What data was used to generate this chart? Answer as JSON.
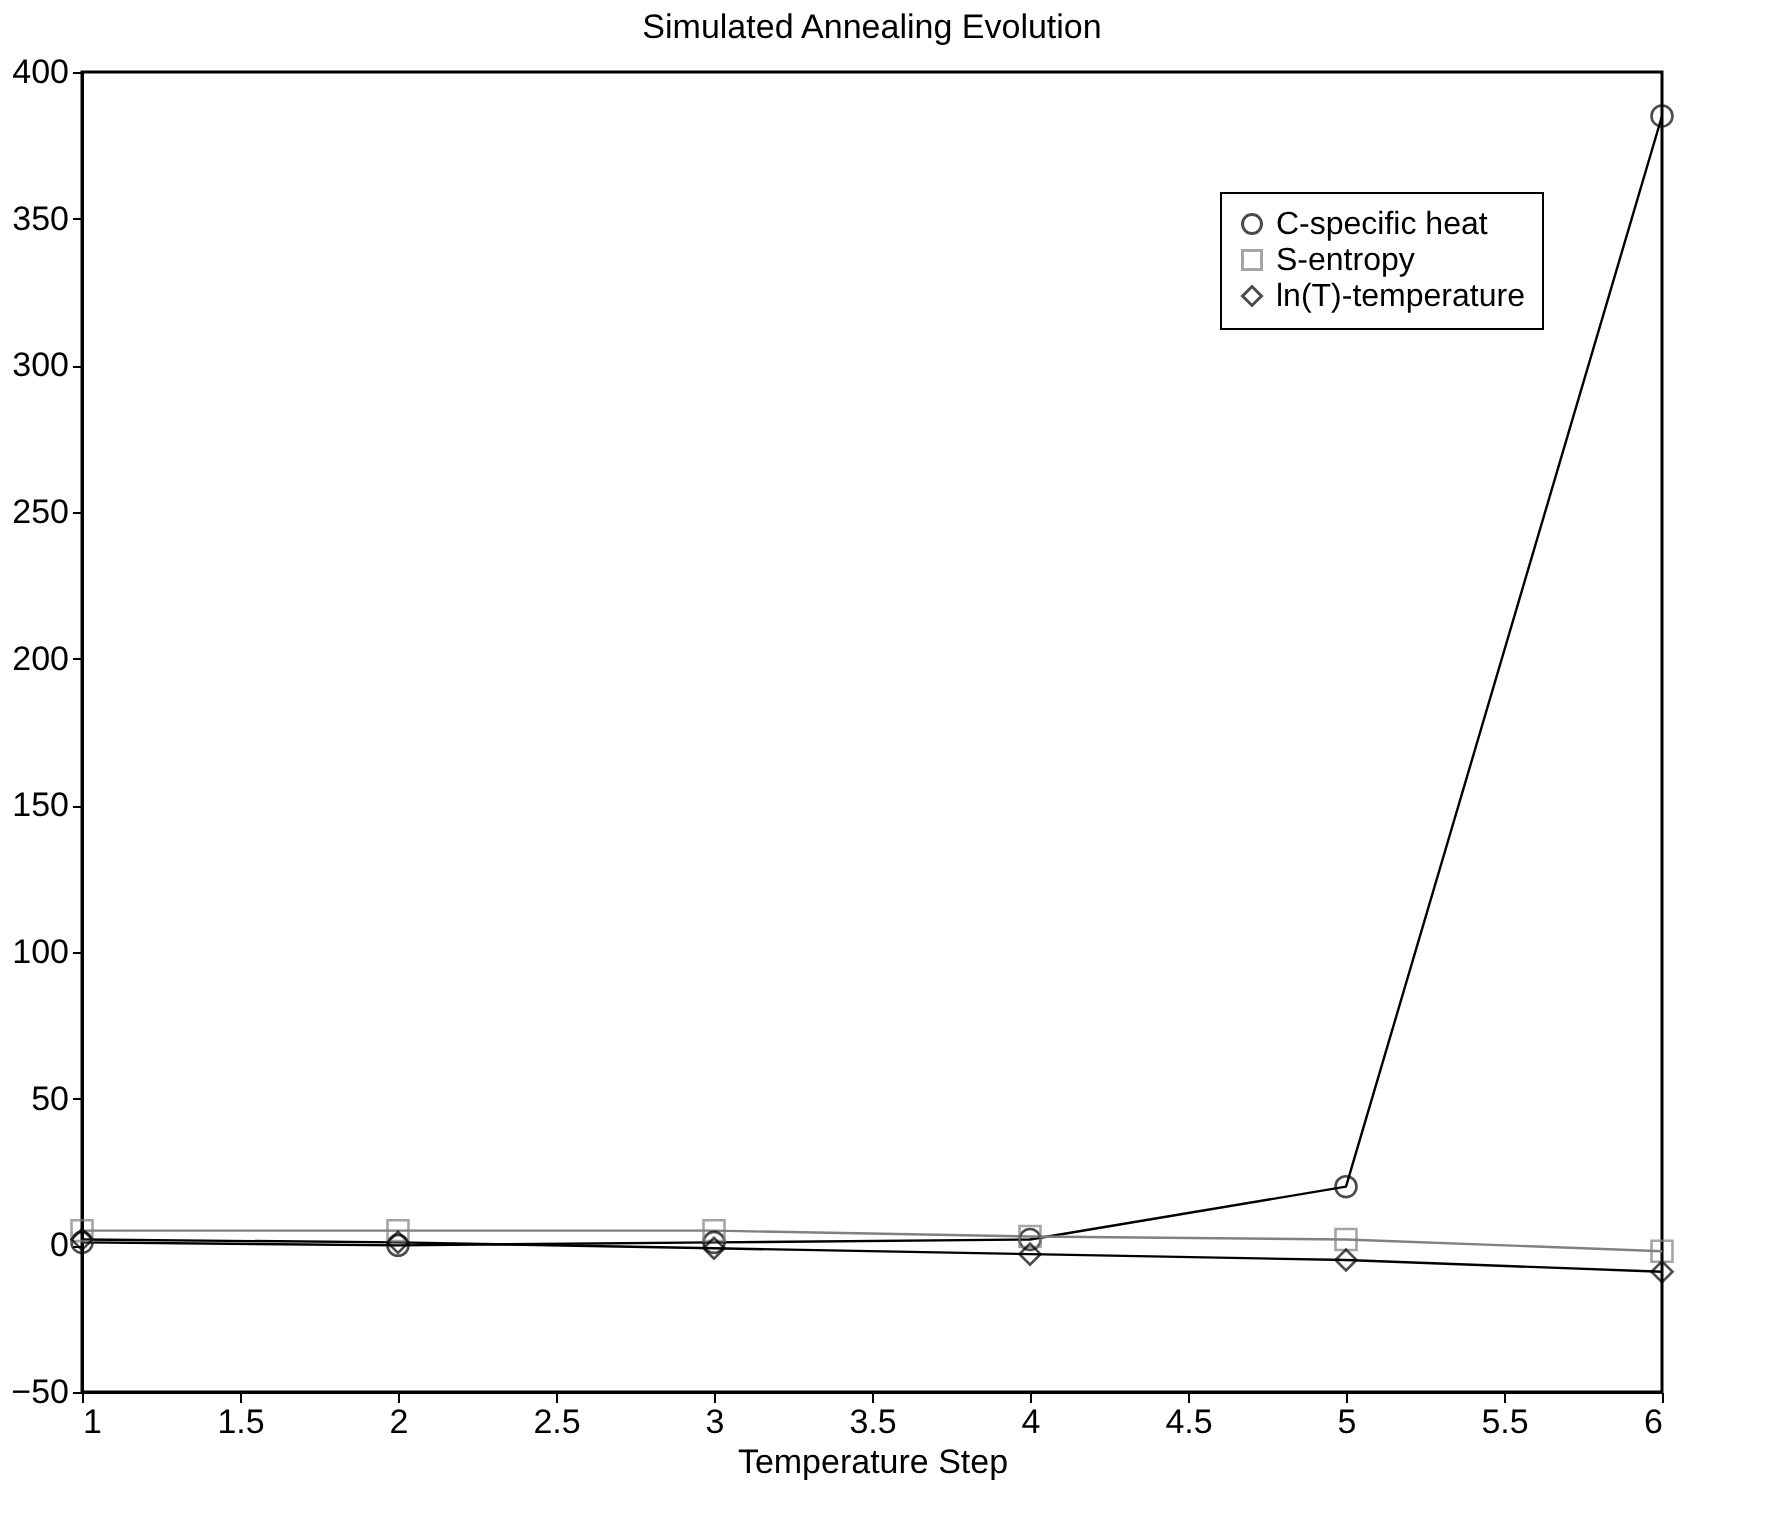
{
  "chart_data": {
    "type": "line",
    "title": "Simulated Annealing Evolution",
    "xlabel": "Temperature Step",
    "x": [
      1,
      2,
      3,
      4,
      5,
      6
    ],
    "series": [
      {
        "name": "C-specific heat",
        "color": "#000000",
        "marker": "circle",
        "values": [
          1,
          0,
          1,
          2,
          20,
          385
        ]
      },
      {
        "name": "S-entropy",
        "color": "#808080",
        "marker": "square",
        "values": [
          5,
          5,
          5,
          3,
          2,
          -2
        ]
      },
      {
        "name": "ln(T)-temperature",
        "color": "#000000",
        "marker": "diamond",
        "values": [
          2,
          1,
          -1,
          -3,
          -5,
          -9
        ]
      }
    ],
    "xlim": [
      1,
      6
    ],
    "xticks": [
      1,
      1.5,
      2,
      2.5,
      3,
      3.5,
      4,
      4.5,
      5,
      5.5,
      6
    ],
    "ylim": [
      -50,
      400
    ],
    "yticks": [
      -50,
      0,
      50,
      100,
      150,
      200,
      250,
      300,
      350,
      400
    ],
    "grid": false,
    "legend": "top right",
    "line_style": "solid"
  }
}
